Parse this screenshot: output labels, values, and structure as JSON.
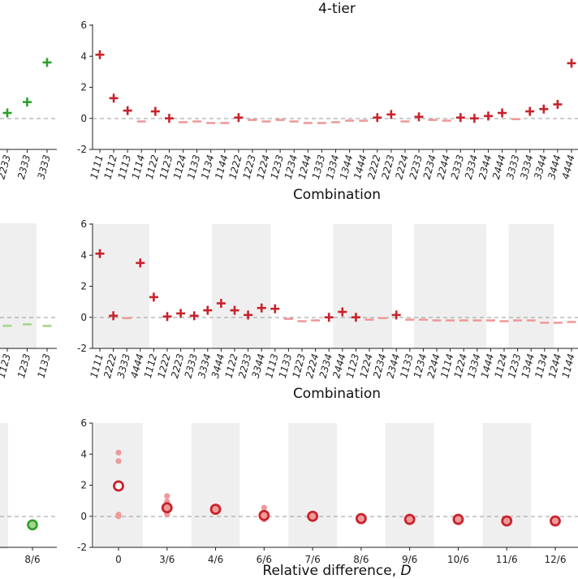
{
  "colors": {
    "red": "#c8232c",
    "pink": "#ef9a9a",
    "green": "#2ca02c",
    "lightgreen": "#a5d68a",
    "shade": "#efefef",
    "zero": "#999999"
  },
  "chart_data": [
    {
      "id": "top-right",
      "type": "scatter",
      "title": "4-tier",
      "xlabel": "Combination",
      "ylabel": "",
      "ylim": [
        -2,
        6
      ],
      "yticks": [
        -2,
        0,
        2,
        4,
        6
      ],
      "categories": [
        "1111",
        "1112",
        "1113",
        "1114",
        "1122",
        "1123",
        "1124",
        "1133",
        "1134",
        "1144",
        "1222",
        "1223",
        "1224",
        "1233",
        "1234",
        "1244",
        "1333",
        "1334",
        "1344",
        "1444",
        "2222",
        "2223",
        "2224",
        "2233",
        "2234",
        "2244",
        "2333",
        "2334",
        "2344",
        "2444",
        "3333",
        "3334",
        "3344",
        "3444",
        "4444"
      ],
      "values": [
        4.1,
        1.3,
        0.5,
        -0.2,
        0.45,
        0.0,
        -0.25,
        -0.2,
        -0.3,
        -0.3,
        0.05,
        -0.1,
        -0.2,
        -0.1,
        -0.2,
        -0.3,
        -0.3,
        -0.25,
        -0.15,
        -0.15,
        0.05,
        0.25,
        -0.2,
        0.1,
        -0.1,
        -0.15,
        0.05,
        0.0,
        0.15,
        0.35,
        -0.05,
        0.45,
        0.6,
        0.9,
        3.55
      ],
      "significant": [
        true,
        true,
        true,
        false,
        true,
        true,
        false,
        false,
        false,
        false,
        true,
        false,
        false,
        false,
        false,
        false,
        false,
        false,
        false,
        false,
        true,
        true,
        false,
        true,
        false,
        false,
        true,
        true,
        true,
        true,
        false,
        true,
        true,
        true,
        true
      ]
    },
    {
      "id": "mid-right",
      "type": "scatter",
      "xlabel": "Combination",
      "ylim": [
        -2,
        6
      ],
      "yticks": [
        -2,
        0,
        2,
        4,
        6
      ],
      "categories": [
        "1111",
        "2222",
        "3333",
        "4444",
        "1112",
        "1222",
        "2223",
        "2333",
        "3334",
        "3444",
        "1122",
        "2233",
        "3344",
        "1113",
        "1133",
        "1223",
        "2224",
        "2334",
        "2444",
        "1123",
        "1224",
        "2234",
        "2344",
        "1133",
        "1234",
        "2244",
        "1114",
        "1224",
        "1334",
        "1444",
        "1124",
        "1233",
        "1344",
        "1134",
        "1244",
        "1144"
      ],
      "values": [
        4.1,
        0.1,
        -0.05,
        3.5,
        1.3,
        0.05,
        0.25,
        0.1,
        0.45,
        0.9,
        0.45,
        0.15,
        0.6,
        0.55,
        -0.1,
        -0.25,
        -0.2,
        0.0,
        0.35,
        0.0,
        -0.15,
        -0.05,
        0.15,
        -0.15,
        -0.15,
        -0.2,
        -0.2,
        -0.2,
        -0.2,
        -0.2,
        -0.25,
        -0.2,
        -0.2,
        -0.35,
        -0.35,
        -0.3
      ],
      "significant": [
        true,
        true,
        false,
        true,
        true,
        true,
        true,
        true,
        true,
        true,
        true,
        true,
        true,
        true,
        false,
        false,
        false,
        true,
        true,
        true,
        false,
        false,
        true,
        false,
        false,
        false,
        false,
        false,
        false,
        false,
        false,
        false,
        false,
        false,
        false,
        false
      ],
      "shaded_groups": [
        [
          0,
          3
        ],
        [
          9,
          12
        ],
        [
          18,
          21
        ],
        [
          24,
          28
        ],
        [
          31,
          33
        ]
      ]
    },
    {
      "id": "bottom-right",
      "type": "scatter",
      "xlabel": "Relative difference, D",
      "ylim": [
        -2,
        6
      ],
      "yticks": [
        -2,
        0,
        2,
        4,
        6
      ],
      "categories": [
        "0",
        "3/6",
        "4/6",
        "6/6",
        "7/6",
        "8/6",
        "9/6",
        "10/6",
        "11/6",
        "12/6"
      ],
      "means": [
        1.95,
        0.55,
        0.45,
        0.05,
        0.0,
        -0.15,
        -0.2,
        -0.2,
        -0.3,
        -0.3
      ],
      "individual_points": [
        [
          4.1,
          3.55,
          0.1,
          0.0
        ],
        [
          1.3,
          0.95,
          0.6,
          0.45,
          0.25,
          0.1
        ],
        [
          0.45
        ],
        [
          0.55,
          0.15,
          -0.2
        ],
        [
          0.05
        ],
        [
          -0.1
        ],
        [
          -0.15
        ],
        [
          -0.15
        ],
        [
          -0.35
        ],
        [
          -0.3
        ]
      ],
      "mean_hollow": [
        true,
        false,
        false,
        false,
        false,
        false,
        false,
        false,
        false,
        false
      ],
      "shaded_bands": [
        0,
        2,
        4,
        6,
        8
      ]
    },
    {
      "id": "top-left-partial",
      "type": "scatter",
      "ylim": [
        -2,
        6
      ],
      "categories": [
        "2233",
        "2333",
        "3333"
      ],
      "values": [
        0.35,
        1.05,
        3.6
      ]
    },
    {
      "id": "mid-left-partial",
      "type": "scatter",
      "ylim": [
        -2,
        6
      ],
      "categories": [
        "1123",
        "1233",
        "1133"
      ],
      "values": [
        -0.55,
        -0.45,
        -0.55
      ]
    },
    {
      "id": "bottom-left-partial",
      "type": "scatter",
      "ylim": [
        -2,
        6
      ],
      "categories": [
        "8/6"
      ],
      "values": [
        -0.55
      ]
    }
  ]
}
